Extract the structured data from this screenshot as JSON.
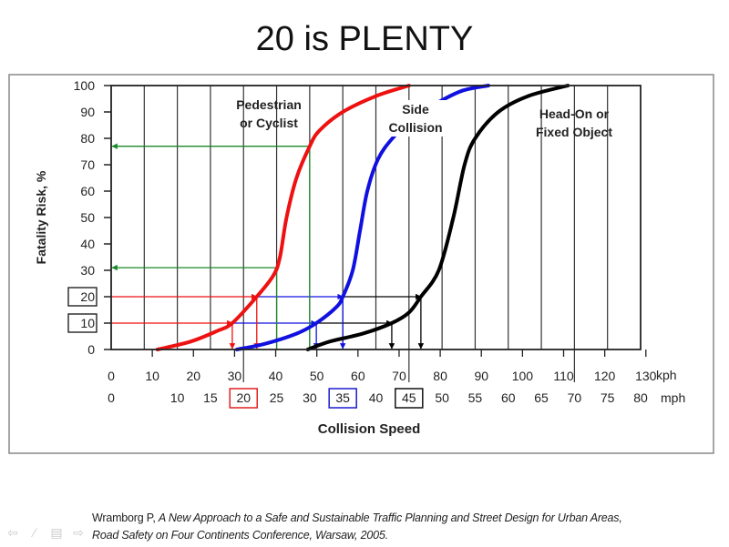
{
  "slide": {
    "title": "20 is PLENTY",
    "citation_author": "Wramborg P, ",
    "citation_title": "A New Approach to a Safe and Sustainable Traffic Planning and Street Design for Urban Areas,",
    "citation_line2": "Road Safety on Four Continents Conference, Warsaw, 2005."
  },
  "controls": [
    {
      "icon": "arrow-left-icon",
      "glyph": "⇦"
    },
    {
      "icon": "pen-icon",
      "glyph": "∕"
    },
    {
      "icon": "slide-menu-icon",
      "glyph": "▤"
    },
    {
      "icon": "arrow-right-icon",
      "glyph": "⇨"
    }
  ],
  "chart_data": {
    "type": "line",
    "xlabel": "Collision Speed",
    "ylabel": "Fatality Risk, %",
    "xlim_mph": [
      0,
      80
    ],
    "ylim": [
      0,
      100
    ],
    "grid": "vertical every 5 mph",
    "yticks": [
      "0",
      "10",
      "20",
      "30",
      "40",
      "50",
      "60",
      "70",
      "80",
      "90",
      "100"
    ],
    "boxed_yticks": [
      "10",
      "20"
    ],
    "kph_unit": "kph",
    "mph_unit": "mph",
    "kph_ticks": [
      "0",
      "10",
      "20",
      "30",
      "40",
      "50",
      "60",
      "70",
      "80",
      "90",
      "100",
      "110",
      "120",
      "130"
    ],
    "mph_ticks": [
      "0",
      "10",
      "15",
      "20",
      "25",
      "30",
      "35",
      "40",
      "45",
      "50",
      "55",
      "60",
      "65",
      "70",
      "75",
      "80"
    ],
    "boxed_mph": [
      {
        "label": "20",
        "color": "#e02020"
      },
      {
        "label": "35",
        "color": "#1a1ad0"
      },
      {
        "label": "45",
        "color": "#111111"
      }
    ],
    "series": [
      {
        "name": "Pedestrian or Cyclist",
        "label_lines": [
          "Pedestrian",
          "or Cyclist"
        ],
        "color": "#ee1111",
        "points_mph": [
          [
            7,
            0
          ],
          [
            12,
            3
          ],
          [
            16,
            7
          ],
          [
            18.3,
            10
          ],
          [
            22,
            20
          ],
          [
            24.5,
            28
          ],
          [
            25.5,
            35
          ],
          [
            26.5,
            50
          ],
          [
            28,
            65
          ],
          [
            30,
            77
          ],
          [
            31.5,
            83
          ],
          [
            35,
            90
          ],
          [
            40,
            96
          ],
          [
            45,
            100
          ]
        ]
      },
      {
        "name": "Side Collision",
        "label_lines": [
          "Side",
          "Collision"
        ],
        "color": "#1010e0",
        "points_mph": [
          [
            19,
            0
          ],
          [
            23,
            2
          ],
          [
            28,
            6
          ],
          [
            31,
            10
          ],
          [
            34,
            16
          ],
          [
            35,
            20
          ],
          [
            36.5,
            30
          ],
          [
            37.6,
            45
          ],
          [
            38.7,
            60
          ],
          [
            40.3,
            72
          ],
          [
            42.5,
            80
          ],
          [
            45.5,
            87
          ],
          [
            49,
            93
          ],
          [
            53,
            98
          ],
          [
            57,
            100
          ]
        ]
      },
      {
        "name": "Head-On or Fixed Object",
        "label_lines": [
          "Head-On or",
          "Fixed Object"
        ],
        "color": "#000000",
        "points_mph": [
          [
            29.7,
            0
          ],
          [
            33,
            3
          ],
          [
            38,
            6
          ],
          [
            42.4,
            10
          ],
          [
            45,
            14
          ],
          [
            46.8,
            20
          ],
          [
            49.5,
            30
          ],
          [
            51.7,
            50
          ],
          [
            53.4,
            70
          ],
          [
            55,
            80
          ],
          [
            58.5,
            90
          ],
          [
            63,
            96
          ],
          [
            69,
            100
          ]
        ]
      }
    ],
    "annotations": {
      "risk_levels": [
        10,
        20
      ],
      "speeds_at_10pct_mph": [
        18.3,
        31,
        42.4
      ],
      "speeds_at_20pct_mph": [
        22,
        35,
        46.8
      ],
      "green_readouts": [
        {
          "mph": 25,
          "risk": 31
        },
        {
          "mph": 30,
          "risk": 77
        }
      ],
      "colors": {
        "red": "#ee1111",
        "blue": "#1010e0",
        "black": "#000000",
        "green": "#1a8a2a"
      }
    }
  }
}
